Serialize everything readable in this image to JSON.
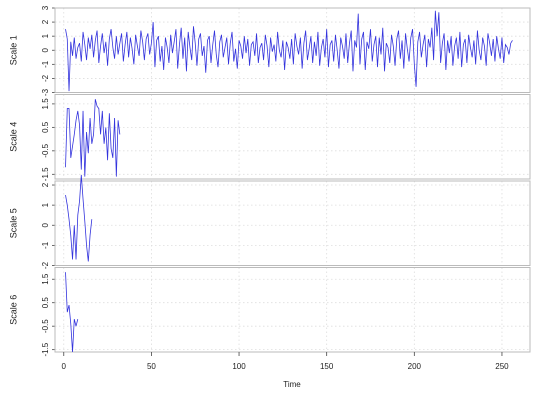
{
  "x_axis": {
    "label": "Time",
    "xlim": [
      -5,
      266
    ],
    "xticks": [
      0,
      50,
      100,
      150,
      200,
      250
    ]
  },
  "chart_data": [
    {
      "type": "line",
      "y_label": "Scale 1",
      "color": "#3333dd",
      "ylim": [
        -3,
        3
      ],
      "yticks": [
        -3,
        -2,
        -1,
        0,
        1,
        2,
        3
      ],
      "grid": true,
      "x": [
        1,
        2,
        3,
        4,
        5,
        6,
        7,
        8,
        9,
        10,
        11,
        12,
        13,
        14,
        15,
        16,
        17,
        18,
        19,
        20,
        21,
        22,
        23,
        24,
        25,
        26,
        27,
        28,
        29,
        30,
        31,
        32,
        33,
        34,
        35,
        36,
        37,
        38,
        39,
        40,
        41,
        42,
        43,
        44,
        45,
        46,
        47,
        48,
        49,
        50,
        51,
        52,
        53,
        54,
        55,
        56,
        57,
        58,
        59,
        60,
        61,
        62,
        63,
        64,
        65,
        66,
        67,
        68,
        69,
        70,
        71,
        72,
        73,
        74,
        75,
        76,
        77,
        78,
        79,
        80,
        81,
        82,
        83,
        84,
        85,
        86,
        87,
        88,
        89,
        90,
        91,
        92,
        93,
        94,
        95,
        96,
        97,
        98,
        99,
        100,
        101,
        102,
        103,
        104,
        105,
        106,
        107,
        108,
        109,
        110,
        111,
        112,
        113,
        114,
        115,
        116,
        117,
        118,
        119,
        120,
        121,
        122,
        123,
        124,
        125,
        126,
        127,
        128,
        129,
        130,
        131,
        132,
        133,
        134,
        135,
        136,
        137,
        138,
        139,
        140,
        141,
        142,
        143,
        144,
        145,
        146,
        147,
        148,
        149,
        150,
        151,
        152,
        153,
        154,
        155,
        156,
        157,
        158,
        159,
        160,
        161,
        162,
        163,
        164,
        165,
        166,
        167,
        168,
        169,
        170,
        171,
        172,
        173,
        174,
        175,
        176,
        177,
        178,
        179,
        180,
        181,
        182,
        183,
        184,
        185,
        186,
        187,
        188,
        189,
        190,
        191,
        192,
        193,
        194,
        195,
        196,
        197,
        198,
        199,
        200,
        201,
        202,
        203,
        204,
        205,
        206,
        207,
        208,
        209,
        210,
        211,
        212,
        213,
        214,
        215,
        216,
        217,
        218,
        219,
        220,
        221,
        222,
        223,
        224,
        225,
        226,
        227,
        228,
        229,
        230,
        231,
        232,
        233,
        234,
        235,
        236,
        237,
        238,
        239,
        240,
        241,
        242,
        243,
        244,
        245,
        246,
        247,
        248,
        249,
        250,
        251,
        252,
        253,
        254,
        255,
        256
      ],
      "values": [
        1.5,
        0.8,
        -2.9,
        0.6,
        -0.4,
        0.9,
        -0.6,
        0.2,
        0.5,
        -0.8,
        1.3,
        0.4,
        -0.7,
        0.9,
        0.1,
        1.1,
        -0.5,
        0.7,
        1.4,
        -0.9,
        0.3,
        1.2,
        -0.2,
        0.6,
        -1.1,
        0.8,
        1.5,
        0.2,
        -0.6,
        1.0,
        -0.3,
        0.5,
        1.2,
        -0.8,
        0.4,
        1.3,
        -0.5,
        0.9,
        0.1,
        -1.0,
        1.1,
        0.3,
        -0.4,
        1.4,
        0.6,
        -0.7,
        0.8,
        1.2,
        -0.3,
        0.5,
        2.0,
        -1.2,
        0.7,
        1.0,
        -0.8,
        0.3,
        -1.4,
        0.9,
        0.2,
        -0.9,
        1.1,
        -0.2,
        0.6,
        1.5,
        -1.3,
        0.4,
        1.6,
        -0.6,
        0.9,
        -1.5,
        1.3,
        0.2,
        -0.7,
        1.7,
        0.5,
        -1.1,
        0.8,
        1.2,
        -0.4,
        0.3,
        -1.6,
        0.7,
        1.0,
        -0.9,
        0.4,
        1.4,
        -0.3,
        -1.2,
        0.6,
        1.1,
        -0.5,
        0.2,
        0.9,
        -1.0,
        0.5,
        1.3,
        -0.8,
        0.1,
        -1.3,
        0.7,
        0.3,
        -0.6,
        1.0,
        -0.2,
        0.8,
        -1.1,
        0.4,
        0.6,
        -0.4,
        1.2,
        -0.9,
        0.2,
        0.5,
        -0.7,
        1.1,
        0.3,
        -1.2,
        0.9,
        -0.1,
        0.4,
        -0.8,
        1.3,
        0.0,
        -0.5,
        0.7,
        -1.4,
        0.6,
        0.2,
        -0.6,
        0.8,
        -1.0,
        1.2,
        0.3,
        -0.3,
        0.9,
        -1.3,
        0.5,
        1.4,
        -0.7,
        0.1,
        1.0,
        -0.9,
        0.6,
        -0.4,
        1.3,
        -1.1,
        0.2,
        0.8,
        -0.5,
        1.5,
        -1.2,
        0.4,
        0.7,
        -0.8,
        1.1,
        0.0,
        -1.3,
        0.9,
        0.3,
        -0.6,
        1.2,
        -0.9,
        0.5,
        1.4,
        -1.5,
        0.7,
        0.2,
        2.6,
        -1.0,
        0.8,
        1.3,
        -1.4,
        0.6,
        0.1,
        1.5,
        -0.8,
        0.4,
        1.0,
        -1.2,
        0.9,
        -0.3,
        1.6,
        -1.5,
        0.5,
        0.2,
        -0.9,
        1.1,
        0.3,
        -1.1,
        0.8,
        1.4,
        -0.6,
        0.7,
        -1.3,
        1.2,
        0.1,
        -0.8,
        0.9,
        1.5,
        -1.0,
        -2.6,
        0.6,
        1.3,
        -0.5,
        0.4,
        1.1,
        -1.2,
        0.8,
        0.2,
        1.6,
        -0.7,
        2.8,
        1.0,
        2.7,
        -0.9,
        0.5,
        1.2,
        -1.4,
        0.7,
        -0.2,
        1.0,
        -1.1,
        0.3,
        0.9,
        -0.6,
        1.3,
        -1.2,
        0.4,
        0.8,
        -0.9,
        1.1,
        0.2,
        -0.5,
        0.7,
        -1.0,
        1.4,
        0.0,
        -0.7,
        0.9,
        0.3,
        -1.1,
        1.2,
        0.5,
        -0.4,
        0.8,
        -0.8,
        1.0,
        0.1,
        -0.6,
        0.9,
        -0.9,
        0.4,
        0.2,
        -0.3,
        0.5,
        0.7
      ]
    },
    {
      "type": "line",
      "y_label": "Scale 4",
      "color": "#3333dd",
      "ylim": [
        -1.7,
        1.9
      ],
      "yticks": [
        -1.5,
        -0.5,
        0.5,
        1.5
      ],
      "grid": true,
      "x": [
        1,
        2,
        3,
        4,
        5,
        6,
        7,
        8,
        9,
        10,
        11,
        12,
        13,
        14,
        15,
        16,
        17,
        18,
        19,
        20,
        21,
        22,
        23,
        24,
        25,
        26,
        27,
        28,
        29,
        30,
        31,
        32
      ],
      "values": [
        -1.2,
        1.3,
        1.3,
        -0.8,
        -0.3,
        0.2,
        0.8,
        1.2,
        0.6,
        -1.3,
        1.2,
        -1.6,
        0.3,
        -0.6,
        0.9,
        -0.2,
        0.2,
        1.7,
        1.4,
        1.3,
        0.2,
        1.2,
        -0.2,
        0.5,
        -0.9,
        1.1,
        -0.4,
        -0.8,
        0.9,
        -1.6,
        0.8,
        0.2
      ]
    },
    {
      "type": "line",
      "y_label": "Scale 5",
      "color": "#3333dd",
      "ylim": [
        -2,
        2.2
      ],
      "yticks": [
        -2,
        -1,
        0,
        1,
        2
      ],
      "grid": true,
      "x": [
        1,
        2,
        3,
        4,
        5,
        6,
        7,
        8,
        9,
        10,
        11,
        12,
        13,
        14,
        15,
        16
      ],
      "values": [
        1.5,
        1.0,
        0.3,
        -0.5,
        -1.7,
        0.0,
        -1.7,
        0.5,
        1.2,
        2.5,
        1.3,
        0.2,
        -1.0,
        -1.8,
        -0.5,
        0.3
      ]
    },
    {
      "type": "line",
      "y_label": "Scale 6",
      "color": "#3333dd",
      "ylim": [
        -1.6,
        2.0
      ],
      "yticks": [
        -1.5,
        -0.5,
        0.5,
        1.5
      ],
      "grid": true,
      "x": [
        1,
        2,
        3,
        4,
        5,
        6,
        7,
        8
      ],
      "values": [
        1.8,
        0.1,
        0.4,
        -0.4,
        -1.6,
        -0.2,
        -0.5,
        -0.2
      ]
    }
  ]
}
